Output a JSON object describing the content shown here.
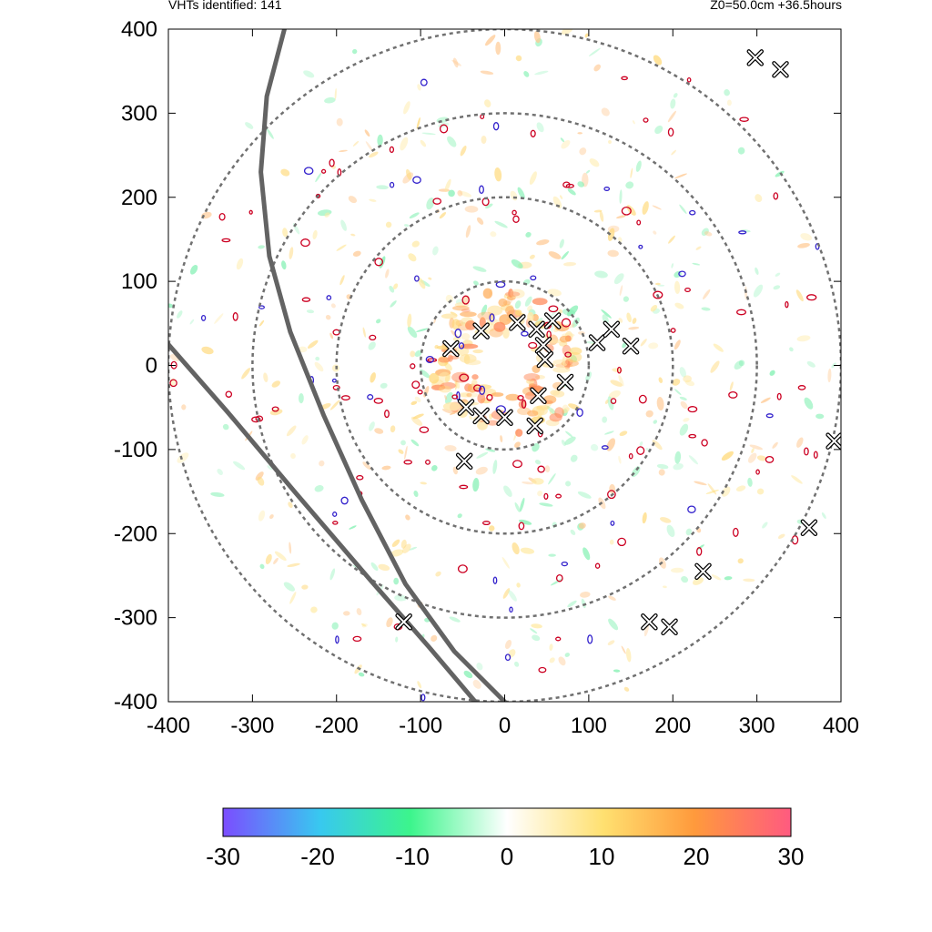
{
  "header": {
    "left": "VHTs identified: 141",
    "right": "Z0=50.0cm  +36.5hours"
  },
  "chart_data": {
    "type": "scatter",
    "title": "",
    "xlabel": "",
    "ylabel": "",
    "xlim": [
      -400,
      400
    ],
    "ylim": [
      -400,
      400
    ],
    "x_ticks": [
      "-400",
      "-300",
      "-200",
      "-100",
      "0",
      "100",
      "200",
      "300",
      "400"
    ],
    "y_ticks": [
      "400",
      "300",
      "200",
      "100",
      "0",
      "-100",
      "-200",
      "-300",
      "-400"
    ],
    "x_tick_values": [
      -400,
      -300,
      -200,
      -100,
      0,
      100,
      200,
      300,
      400
    ],
    "y_tick_values": [
      400,
      300,
      200,
      100,
      0,
      -100,
      -200,
      -300,
      -400
    ],
    "range_rings_radius": [
      100,
      200,
      300,
      400
    ],
    "colorbar": {
      "ticks": [
        "-30",
        "-20",
        "-10",
        "0",
        "10",
        "20",
        "30"
      ],
      "values": [
        -30,
        -20,
        -10,
        0,
        10,
        20,
        30
      ],
      "range": [
        -30,
        30
      ],
      "colors": [
        "#7b4dff",
        "#38c8f0",
        "#3cf58c",
        "#ffffff",
        "#ffe070",
        "#ff9a3c",
        "#ff5a80"
      ]
    },
    "colors": {
      "ring": "#707070",
      "track": "#636363",
      "contour_pos": "#cc0022",
      "contour_neg": "#3322cc",
      "marker": "#000000"
    },
    "track_lines": [
      {
        "points": [
          [
            -262,
            400
          ],
          [
            -283,
            320
          ],
          [
            -290,
            230
          ],
          [
            -280,
            130
          ],
          [
            -255,
            40
          ],
          [
            -215,
            -60
          ],
          [
            -170,
            -160
          ],
          [
            -118,
            -260
          ],
          [
            -60,
            -340
          ],
          [
            0,
            -400
          ]
        ]
      },
      {
        "points": [
          [
            -400,
            25
          ],
          [
            -330,
            -55
          ],
          [
            -250,
            -150
          ],
          [
            -160,
            -255
          ],
          [
            -90,
            -335
          ],
          [
            -35,
            -400
          ]
        ]
      }
    ],
    "vht_markers": [
      {
        "x": -28,
        "y": 41
      },
      {
        "x": 15,
        "y": 51
      },
      {
        "x": 38,
        "y": 43
      },
      {
        "x": 57,
        "y": 53
      },
      {
        "x": -64,
        "y": 20
      },
      {
        "x": 46,
        "y": 24
      },
      {
        "x": 48,
        "y": 7
      },
      {
        "x": 72,
        "y": -20
      },
      {
        "x": 40,
        "y": -36
      },
      {
        "x": -46,
        "y": -50
      },
      {
        "x": -28,
        "y": -60
      },
      {
        "x": 0,
        "y": -62
      },
      {
        "x": 36,
        "y": -72
      },
      {
        "x": 110,
        "y": 27
      },
      {
        "x": 127,
        "y": 43
      },
      {
        "x": 150,
        "y": 23
      },
      {
        "x": -48,
        "y": -114
      },
      {
        "x": 298,
        "y": 366
      },
      {
        "x": 328,
        "y": 352
      },
      {
        "x": 392,
        "y": -90
      },
      {
        "x": 362,
        "y": -193
      },
      {
        "x": 236,
        "y": -245
      },
      {
        "x": 172,
        "y": -305
      },
      {
        "x": 196,
        "y": -311
      },
      {
        "x": -120,
        "y": -305
      }
    ],
    "grid": false
  }
}
